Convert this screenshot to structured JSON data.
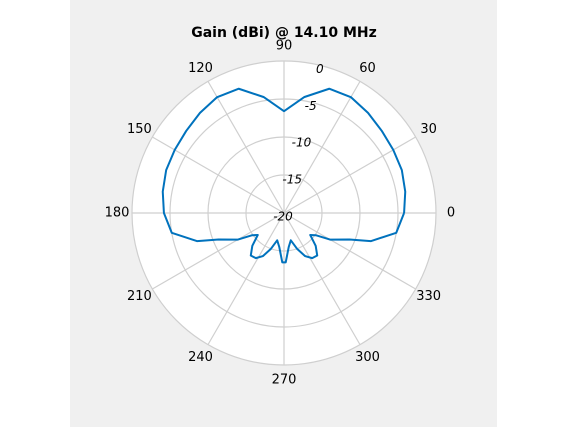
{
  "chart_data": {
    "type": "polar",
    "title": "Gain (dBi) @ 14.10 MHz",
    "x": [
      0,
      10,
      20,
      30,
      40,
      50,
      60,
      70,
      80,
      90,
      100,
      110,
      120,
      130,
      140,
      150,
      160,
      170,
      180,
      190,
      198,
      202,
      210,
      215,
      220,
      226,
      232,
      238,
      244,
      250,
      256,
      262,
      268,
      272,
      278,
      284,
      290,
      296,
      302,
      308,
      314,
      320,
      325,
      330,
      338,
      342,
      350,
      360
    ],
    "values": [
      -4.2,
      -3.8,
      -3.5,
      -3.4,
      -3.2,
      -2.8,
      -2.4,
      -2.6,
      -4.5,
      -6.6,
      -4.5,
      -2.6,
      -2.4,
      -2.8,
      -3.2,
      -3.4,
      -3.5,
      -3.8,
      -4.2,
      -5.0,
      -8.0,
      -10.7,
      -13.0,
      -14.9,
      -15.5,
      -14.0,
      -12.9,
      -13.0,
      -13.7,
      -15.0,
      -16.3,
      -15.5,
      -13.5,
      -13.5,
      -15.5,
      -16.3,
      -15.0,
      -13.7,
      -13.0,
      -12.9,
      -14.0,
      -15.5,
      -14.9,
      -13.0,
      -10.7,
      -8.0,
      -5.0,
      -4.2
    ],
    "color": "#0072bd",
    "rlim": [
      -20,
      0
    ],
    "rticks": [
      -20,
      -15,
      -10,
      -5,
      0
    ],
    "thetaticks": [
      0,
      30,
      60,
      90,
      120,
      150,
      180,
      210,
      240,
      270,
      300,
      330
    ],
    "grid": true
  }
}
